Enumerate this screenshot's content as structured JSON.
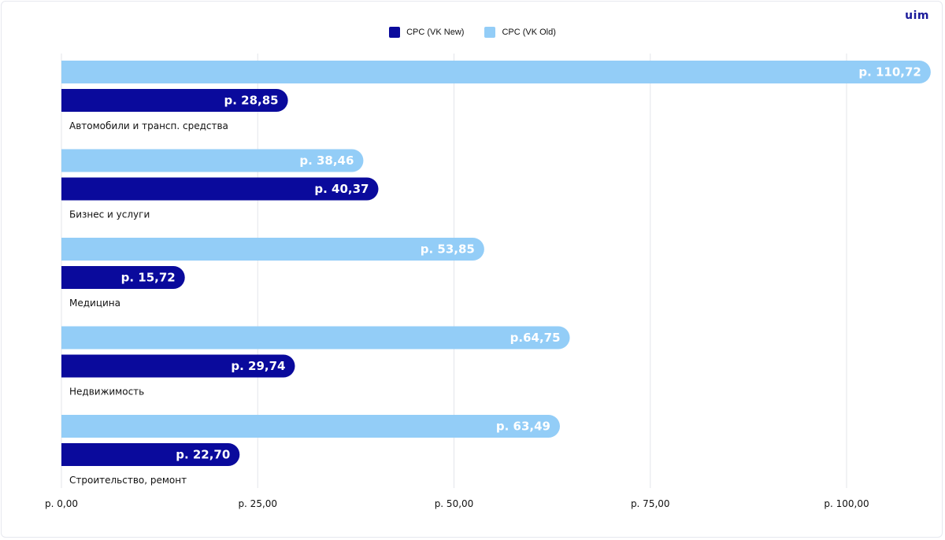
{
  "logo_text": "uim",
  "colors": {
    "new": "#0a0a9c",
    "old": "#93cdf7",
    "grid": "#e3e5ea"
  },
  "legend": [
    {
      "label": "CPC (VK New)",
      "color": "#0a0a9c"
    },
    {
      "label": "CPC (VK Old)",
      "color": "#93cdf7"
    }
  ],
  "chart_data": {
    "type": "bar",
    "orientation": "horizontal",
    "categories": [
      "Автомобили и трансп. средства",
      "Бизнес и услуги",
      "Медицина",
      "Недвижимость",
      "Строительство, ремонт"
    ],
    "series": [
      {
        "name": "CPC (VK Old)",
        "values": [
          110.72,
          38.46,
          53.85,
          64.75,
          63.49
        ],
        "labels": [
          "р. 110,72",
          "р. 38,46",
          "р. 53,85",
          "р.64,75",
          "р. 63,49"
        ]
      },
      {
        "name": "CPC (VK New)",
        "values": [
          28.85,
          40.37,
          15.72,
          29.74,
          22.7
        ],
        "labels": [
          "р. 28,85",
          "р. 40,37",
          "р. 15,72",
          "р. 29,74",
          "р. 22,70"
        ]
      }
    ],
    "xlim": [
      0,
      110
    ],
    "xticks": [
      0,
      25,
      50,
      75,
      100
    ],
    "xtick_labels": [
      "р. 0,00",
      "р. 25,00",
      "р. 50,00",
      "р. 75,00",
      "р. 100,00"
    ],
    "grid": true,
    "legend_position": "top-center"
  }
}
